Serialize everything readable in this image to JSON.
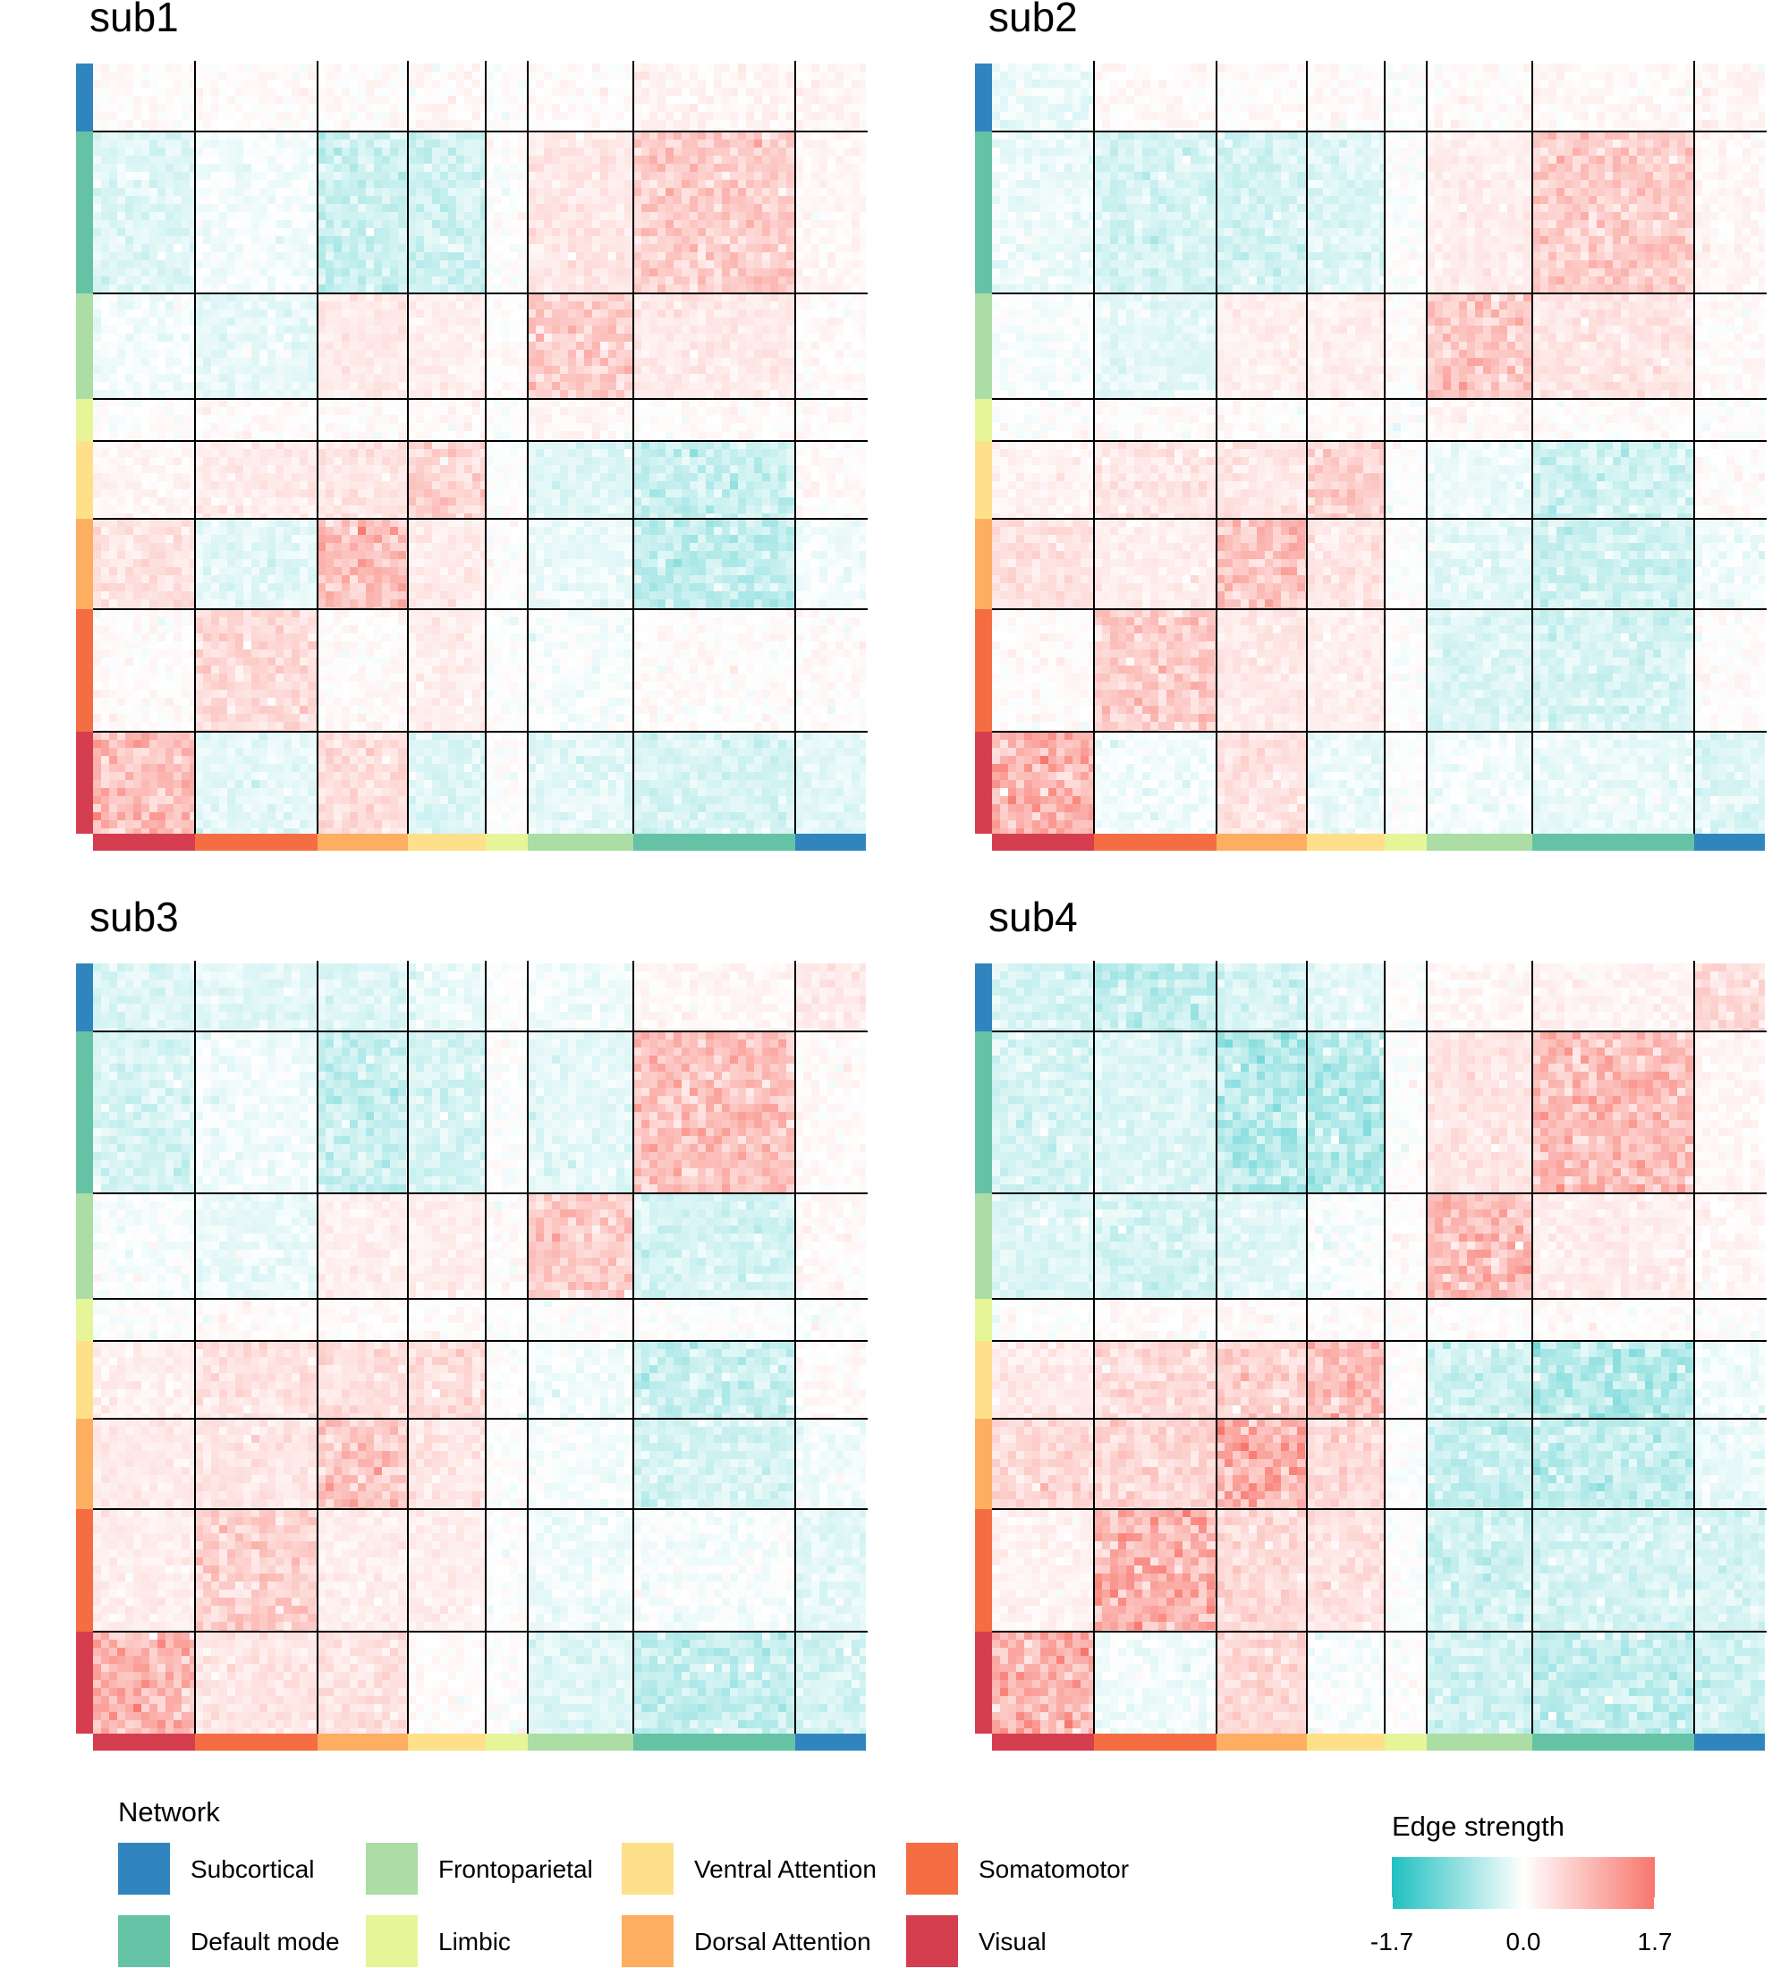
{
  "chart_data": [
    {
      "type": "heatmap",
      "title": "sub1",
      "networks_rows_top_to_bottom": [
        "Subcortical",
        "Default mode",
        "Frontoparietal",
        "Limbic",
        "Ventral Attention",
        "Dorsal Attention",
        "Somatomotor",
        "Visual"
      ],
      "networks_cols_left_to_right": [
        "Visual",
        "Somatomotor",
        "Dorsal Attention",
        "Ventral Attention",
        "Limbic",
        "Frontoparietal",
        "Default mode",
        "Subcortical"
      ],
      "block_mean_strength": [
        [
          0.05,
          0.05,
          0.05,
          0.08,
          0.0,
          0.06,
          0.12,
          0.1
        ],
        [
          -0.25,
          -0.08,
          -0.4,
          -0.35,
          0.0,
          0.3,
          0.6,
          0.1
        ],
        [
          -0.1,
          -0.18,
          0.25,
          0.2,
          0.05,
          0.6,
          0.25,
          0.05
        ],
        [
          0.0,
          0.05,
          0.05,
          0.08,
          0.0,
          0.1,
          0.05,
          0.05
        ],
        [
          0.12,
          0.25,
          0.3,
          0.55,
          0.0,
          -0.25,
          -0.4,
          0.05
        ],
        [
          0.35,
          -0.2,
          0.75,
          0.25,
          0.0,
          -0.15,
          -0.45,
          -0.1
        ],
        [
          0.05,
          0.45,
          0.05,
          0.2,
          0.0,
          -0.05,
          0.05,
          0.05
        ],
        [
          0.8,
          -0.2,
          0.4,
          -0.25,
          0.0,
          -0.2,
          -0.3,
          -0.2
        ]
      ]
    },
    {
      "type": "heatmap",
      "title": "sub2",
      "networks_rows_top_to_bottom": [
        "Subcortical",
        "Default mode",
        "Frontoparietal",
        "Limbic",
        "Ventral Attention",
        "Dorsal Attention",
        "Somatomotor",
        "Visual"
      ],
      "networks_cols_left_to_right": [
        "Visual",
        "Somatomotor",
        "Dorsal Attention",
        "Ventral Attention",
        "Limbic",
        "Frontoparietal",
        "Default mode",
        "Subcortical"
      ],
      "block_mean_strength": [
        [
          -0.15,
          0.08,
          0.05,
          0.05,
          0.0,
          0.05,
          0.08,
          0.12
        ],
        [
          -0.15,
          -0.3,
          -0.3,
          -0.25,
          0.0,
          0.2,
          0.6,
          0.1
        ],
        [
          -0.05,
          -0.2,
          0.2,
          0.2,
          0.05,
          0.65,
          0.3,
          0.05
        ],
        [
          0.0,
          0.05,
          0.05,
          0.05,
          0.0,
          0.1,
          0.05,
          0.0
        ],
        [
          0.15,
          0.3,
          0.3,
          0.6,
          0.0,
          -0.15,
          -0.35,
          0.05
        ],
        [
          0.35,
          0.2,
          0.75,
          0.3,
          0.0,
          -0.2,
          -0.35,
          -0.1
        ],
        [
          0.05,
          0.6,
          0.25,
          0.2,
          0.0,
          -0.25,
          -0.3,
          0.05
        ],
        [
          0.9,
          -0.1,
          0.35,
          -0.15,
          0.0,
          -0.1,
          -0.15,
          -0.25
        ]
      ]
    },
    {
      "type": "heatmap",
      "title": "sub3",
      "networks_rows_top_to_bottom": [
        "Subcortical",
        "Default mode",
        "Frontoparietal",
        "Limbic",
        "Ventral Attention",
        "Dorsal Attention",
        "Somatomotor",
        "Visual"
      ],
      "networks_cols_left_to_right": [
        "Visual",
        "Somatomotor",
        "Dorsal Attention",
        "Ventral Attention",
        "Limbic",
        "Frontoparietal",
        "Default mode",
        "Subcortical"
      ],
      "block_mean_strength": [
        [
          -0.25,
          -0.2,
          -0.25,
          -0.15,
          0.0,
          -0.1,
          0.1,
          0.25
        ],
        [
          -0.3,
          -0.1,
          -0.4,
          -0.3,
          0.0,
          -0.2,
          0.75,
          0.05
        ],
        [
          -0.05,
          -0.15,
          0.2,
          0.2,
          0.05,
          0.6,
          -0.3,
          0.05
        ],
        [
          0.0,
          0.05,
          0.05,
          0.05,
          0.0,
          0.0,
          0.0,
          0.0
        ],
        [
          0.2,
          0.35,
          0.4,
          0.4,
          0.0,
          -0.1,
          -0.4,
          0.05
        ],
        [
          0.25,
          0.3,
          0.7,
          0.3,
          0.0,
          -0.05,
          -0.3,
          -0.1
        ],
        [
          0.2,
          0.55,
          0.2,
          0.2,
          0.0,
          -0.1,
          -0.05,
          -0.2
        ],
        [
          0.85,
          0.3,
          0.35,
          0.05,
          0.0,
          -0.25,
          -0.45,
          -0.3
        ]
      ]
    },
    {
      "type": "heatmap",
      "title": "sub4",
      "networks_rows_top_to_bottom": [
        "Subcortical",
        "Default mode",
        "Frontoparietal",
        "Limbic",
        "Ventral Attention",
        "Dorsal Attention",
        "Somatomotor",
        "Visual"
      ],
      "networks_cols_left_to_right": [
        "Visual",
        "Somatomotor",
        "Dorsal Attention",
        "Ventral Attention",
        "Limbic",
        "Frontoparietal",
        "Default mode",
        "Subcortical"
      ],
      "block_mean_strength": [
        [
          -0.3,
          -0.45,
          -0.3,
          -0.2,
          0.0,
          0.1,
          0.15,
          0.4
        ],
        [
          -0.3,
          -0.25,
          -0.55,
          -0.55,
          0.0,
          0.3,
          0.8,
          0.1
        ],
        [
          -0.25,
          -0.3,
          -0.2,
          -0.05,
          0.05,
          0.8,
          0.2,
          0.1
        ],
        [
          0.0,
          0.05,
          0.05,
          0.05,
          0.0,
          0.05,
          0.05,
          0.0
        ],
        [
          0.25,
          0.45,
          0.55,
          0.75,
          0.0,
          -0.35,
          -0.55,
          -0.1
        ],
        [
          0.45,
          0.5,
          0.95,
          0.45,
          0.0,
          -0.4,
          -0.45,
          -0.15
        ],
        [
          0.15,
          0.9,
          0.45,
          0.35,
          0.0,
          -0.35,
          -0.3,
          -0.3
        ],
        [
          0.9,
          -0.1,
          0.45,
          -0.05,
          0.0,
          -0.35,
          -0.45,
          -0.35
        ]
      ]
    }
  ],
  "legend": {
    "network_title": "Network",
    "networks": [
      {
        "name": "Subcortical",
        "color": "#3185BE"
      },
      {
        "name": "Default mode",
        "color": "#66C2A5"
      },
      {
        "name": "Frontoparietal",
        "color": "#ABDDA4"
      },
      {
        "name": "Limbic",
        "color": "#E6F598"
      },
      {
        "name": "Ventral Attention",
        "color": "#FEE08B"
      },
      {
        "name": "Dorsal Attention",
        "color": "#FDAE61"
      },
      {
        "name": "Somatomotor",
        "color": "#F46D43"
      },
      {
        "name": "Visual",
        "color": "#D53E4F"
      }
    ],
    "colorbar_title": "Edge strength",
    "colorbar_ticks": [
      "-1.7",
      "0.0",
      "1.7"
    ],
    "colorbar_range": [
      -1.7,
      1.7
    ],
    "colorbar_colors": {
      "low": "#20C0C0",
      "mid": "#FFFFFF",
      "high": "#F8766D"
    }
  }
}
